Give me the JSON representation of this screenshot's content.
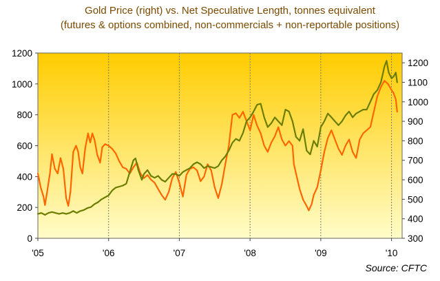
{
  "chart_data": {
    "type": "line",
    "title": "Gold Price (right) vs. Net Speculative Length, tonnes equivalent",
    "subtitle": "(futures & options combined, non-commercials + non-reportable positions)",
    "source": "Source:  CFTC",
    "x_tick_labels": [
      "'05",
      "'06",
      "'07",
      "'08",
      "'09",
      "'10"
    ],
    "x_range": [
      2005.0,
      2010.15
    ],
    "y_left": {
      "range": [
        0,
        1200
      ],
      "ticks": [
        0,
        200,
        400,
        600,
        800,
        1000,
        1200
      ]
    },
    "y_right": {
      "range": [
        300,
        1250
      ],
      "ticks": [
        300,
        400,
        500,
        600,
        700,
        800,
        900,
        1000,
        1100,
        1200
      ]
    },
    "grid": "vertical only",
    "colors": {
      "bg_top": "#ffcc00",
      "bg_bottom": "#fffcc8",
      "net_length": "#ff6600",
      "gold_price": "#6b7d00",
      "grid": "#777777"
    },
    "series": [
      {
        "axis": "left",
        "color": "#ff6600",
        "points": [
          [
            2005.0,
            420
          ],
          [
            2005.04,
            330
          ],
          [
            2005.08,
            270
          ],
          [
            2005.1,
            215
          ],
          [
            2005.13,
            300
          ],
          [
            2005.17,
            420
          ],
          [
            2005.2,
            545
          ],
          [
            2005.24,
            450
          ],
          [
            2005.28,
            420
          ],
          [
            2005.32,
            520
          ],
          [
            2005.36,
            450
          ],
          [
            2005.4,
            260
          ],
          [
            2005.43,
            210
          ],
          [
            2005.46,
            300
          ],
          [
            2005.5,
            560
          ],
          [
            2005.54,
            600
          ],
          [
            2005.57,
            560
          ],
          [
            2005.6,
            460
          ],
          [
            2005.63,
            420
          ],
          [
            2005.67,
            585
          ],
          [
            2005.71,
            680
          ],
          [
            2005.74,
            620
          ],
          [
            2005.77,
            680
          ],
          [
            2005.8,
            640
          ],
          [
            2005.84,
            540
          ],
          [
            2005.88,
            490
          ],
          [
            2005.91,
            590
          ],
          [
            2005.95,
            610
          ],
          [
            2006.0,
            600
          ],
          [
            2006.05,
            580
          ],
          [
            2006.1,
            550
          ],
          [
            2006.15,
            500
          ],
          [
            2006.2,
            460
          ],
          [
            2006.25,
            450
          ],
          [
            2006.3,
            420
          ],
          [
            2006.35,
            460
          ],
          [
            2006.4,
            490
          ],
          [
            2006.45,
            420
          ],
          [
            2006.5,
            390
          ],
          [
            2006.55,
            410
          ],
          [
            2006.6,
            380
          ],
          [
            2006.65,
            360
          ],
          [
            2006.7,
            320
          ],
          [
            2006.75,
            280
          ],
          [
            2006.8,
            250
          ],
          [
            2006.85,
            300
          ],
          [
            2006.9,
            390
          ],
          [
            2006.95,
            430
          ],
          [
            2007.0,
            360
          ],
          [
            2007.05,
            270
          ],
          [
            2007.1,
            410
          ],
          [
            2007.15,
            450
          ],
          [
            2007.2,
            460
          ],
          [
            2007.25,
            440
          ],
          [
            2007.3,
            370
          ],
          [
            2007.35,
            400
          ],
          [
            2007.4,
            480
          ],
          [
            2007.45,
            440
          ],
          [
            2007.5,
            330
          ],
          [
            2007.55,
            260
          ],
          [
            2007.6,
            350
          ],
          [
            2007.65,
            480
          ],
          [
            2007.7,
            600
          ],
          [
            2007.75,
            800
          ],
          [
            2007.8,
            810
          ],
          [
            2007.85,
            780
          ],
          [
            2007.9,
            820
          ],
          [
            2007.95,
            760
          ],
          [
            2008.0,
            700
          ],
          [
            2008.05,
            800
          ],
          [
            2008.1,
            730
          ],
          [
            2008.15,
            680
          ],
          [
            2008.2,
            600
          ],
          [
            2008.25,
            560
          ],
          [
            2008.3,
            620
          ],
          [
            2008.35,
            660
          ],
          [
            2008.4,
            720
          ],
          [
            2008.45,
            640
          ],
          [
            2008.5,
            600
          ],
          [
            2008.55,
            630
          ],
          [
            2008.6,
            600
          ],
          [
            2008.62,
            480
          ],
          [
            2008.65,
            420
          ],
          [
            2008.7,
            320
          ],
          [
            2008.75,
            250
          ],
          [
            2008.8,
            210
          ],
          [
            2008.83,
            180
          ],
          [
            2008.87,
            220
          ],
          [
            2008.9,
            280
          ],
          [
            2008.95,
            330
          ],
          [
            2009.0,
            440
          ],
          [
            2009.05,
            560
          ],
          [
            2009.1,
            650
          ],
          [
            2009.15,
            700
          ],
          [
            2009.2,
            640
          ],
          [
            2009.25,
            580
          ],
          [
            2009.3,
            540
          ],
          [
            2009.35,
            600
          ],
          [
            2009.4,
            640
          ],
          [
            2009.45,
            560
          ],
          [
            2009.5,
            520
          ],
          [
            2009.55,
            640
          ],
          [
            2009.6,
            680
          ],
          [
            2009.65,
            700
          ],
          [
            2009.7,
            720
          ],
          [
            2009.75,
            820
          ],
          [
            2009.8,
            920
          ],
          [
            2009.85,
            980
          ],
          [
            2009.9,
            1020
          ],
          [
            2009.95,
            1000
          ],
          [
            2010.0,
            960
          ],
          [
            2010.03,
            940
          ],
          [
            2010.06,
            900
          ],
          [
            2010.08,
            820
          ]
        ]
      },
      {
        "axis": "right",
        "color": "#6b7d00",
        "points": [
          [
            2005.0,
            425
          ],
          [
            2005.05,
            430
          ],
          [
            2005.1,
            420
          ],
          [
            2005.15,
            430
          ],
          [
            2005.2,
            435
          ],
          [
            2005.25,
            430
          ],
          [
            2005.3,
            425
          ],
          [
            2005.35,
            430
          ],
          [
            2005.4,
            425
          ],
          [
            2005.45,
            430
          ],
          [
            2005.5,
            440
          ],
          [
            2005.55,
            430
          ],
          [
            2005.6,
            440
          ],
          [
            2005.65,
            445
          ],
          [
            2005.7,
            455
          ],
          [
            2005.75,
            460
          ],
          [
            2005.8,
            475
          ],
          [
            2005.85,
            485
          ],
          [
            2005.9,
            500
          ],
          [
            2005.95,
            510
          ],
          [
            2006.0,
            520
          ],
          [
            2006.05,
            545
          ],
          [
            2006.1,
            560
          ],
          [
            2006.15,
            565
          ],
          [
            2006.2,
            570
          ],
          [
            2006.25,
            580
          ],
          [
            2006.3,
            640
          ],
          [
            2006.35,
            700
          ],
          [
            2006.38,
            710
          ],
          [
            2006.42,
            650
          ],
          [
            2006.47,
            600
          ],
          [
            2006.5,
            630
          ],
          [
            2006.55,
            650
          ],
          [
            2006.6,
            620
          ],
          [
            2006.65,
            610
          ],
          [
            2006.7,
            620
          ],
          [
            2006.75,
            600
          ],
          [
            2006.8,
            590
          ],
          [
            2006.85,
            610
          ],
          [
            2006.9,
            630
          ],
          [
            2006.95,
            630
          ],
          [
            2007.0,
            620
          ],
          [
            2007.05,
            640
          ],
          [
            2007.1,
            650
          ],
          [
            2007.15,
            660
          ],
          [
            2007.2,
            680
          ],
          [
            2007.25,
            690
          ],
          [
            2007.3,
            680
          ],
          [
            2007.35,
            660
          ],
          [
            2007.4,
            670
          ],
          [
            2007.45,
            665
          ],
          [
            2007.5,
            660
          ],
          [
            2007.55,
            670
          ],
          [
            2007.6,
            700
          ],
          [
            2007.65,
            720
          ],
          [
            2007.7,
            750
          ],
          [
            2007.75,
            790
          ],
          [
            2007.8,
            810
          ],
          [
            2007.85,
            800
          ],
          [
            2007.9,
            840
          ],
          [
            2007.95,
            900
          ],
          [
            2008.0,
            920
          ],
          [
            2008.05,
            950
          ],
          [
            2008.1,
            985
          ],
          [
            2008.15,
            990
          ],
          [
            2008.2,
            920
          ],
          [
            2008.25,
            870
          ],
          [
            2008.3,
            890
          ],
          [
            2008.35,
            920
          ],
          [
            2008.4,
            900
          ],
          [
            2008.45,
            880
          ],
          [
            2008.5,
            960
          ],
          [
            2008.55,
            950
          ],
          [
            2008.6,
            900
          ],
          [
            2008.65,
            820
          ],
          [
            2008.7,
            800
          ],
          [
            2008.75,
            860
          ],
          [
            2008.8,
            750
          ],
          [
            2008.85,
            730
          ],
          [
            2008.9,
            800
          ],
          [
            2008.95,
            770
          ],
          [
            2009.0,
            870
          ],
          [
            2009.05,
            900
          ],
          [
            2009.1,
            940
          ],
          [
            2009.15,
            920
          ],
          [
            2009.2,
            900
          ],
          [
            2009.25,
            880
          ],
          [
            2009.3,
            900
          ],
          [
            2009.35,
            930
          ],
          [
            2009.4,
            950
          ],
          [
            2009.45,
            920
          ],
          [
            2009.5,
            940
          ],
          [
            2009.55,
            950
          ],
          [
            2009.6,
            960
          ],
          [
            2009.65,
            960
          ],
          [
            2009.7,
            1000
          ],
          [
            2009.75,
            1040
          ],
          [
            2009.8,
            1060
          ],
          [
            2009.85,
            1100
          ],
          [
            2009.9,
            1180
          ],
          [
            2009.93,
            1210
          ],
          [
            2009.96,
            1150
          ],
          [
            2010.0,
            1120
          ],
          [
            2010.03,
            1130
          ],
          [
            2010.06,
            1150
          ],
          [
            2010.08,
            1100
          ]
        ]
      }
    ]
  }
}
